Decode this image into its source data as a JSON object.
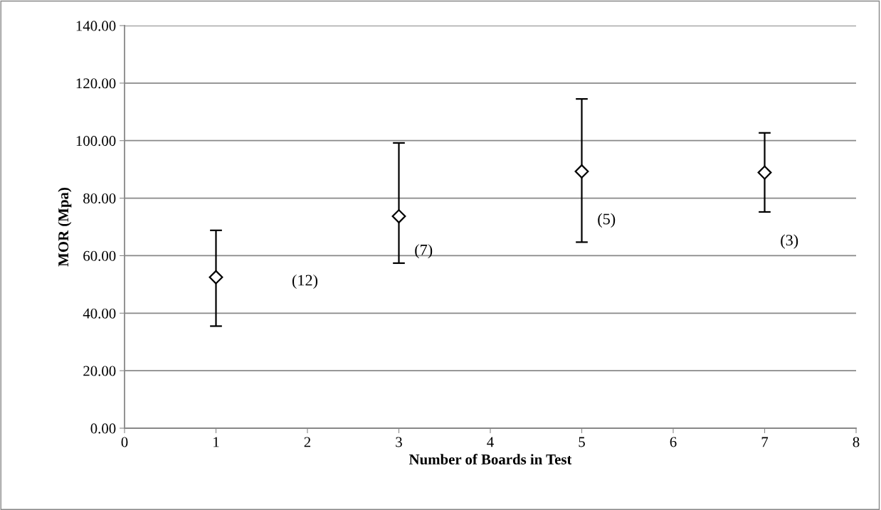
{
  "chart_data": {
    "type": "scatter",
    "xlabel": "Number of Boards in Test",
    "ylabel": "MOR (Mpa)",
    "x": [
      1,
      3,
      5,
      7
    ],
    "series": [
      {
        "color": "#000000",
        "values": [
          52.5,
          73.7,
          89.3,
          88.9
        ],
        "errors": [
          [
            35.5,
            68.8
          ],
          [
            57.4,
            99.2
          ],
          [
            64.7,
            114.5
          ],
          [
            75.2,
            102.7
          ]
        ]
      }
    ],
    "marker": "diamond",
    "xlim": [
      0,
      8
    ],
    "xticks": [
      0,
      1,
      2,
      3,
      4,
      5,
      6,
      7,
      8
    ],
    "ylim": [
      0,
      140
    ],
    "yticks": [
      {
        "value": 0,
        "label": "0.00"
      },
      {
        "value": 20,
        "label": "20.00"
      },
      {
        "value": 40,
        "label": "40.00"
      },
      {
        "value": 60,
        "label": "60.00"
      },
      {
        "value": 80,
        "label": "80.00"
      },
      {
        "value": 100,
        "label": "100.00"
      },
      {
        "value": 120,
        "label": "120.00"
      },
      {
        "value": 140,
        "label": "140.00"
      }
    ],
    "grid": "y",
    "annotations": [
      "(12)",
      "(7)",
      "(5)",
      "(3)"
    ]
  }
}
